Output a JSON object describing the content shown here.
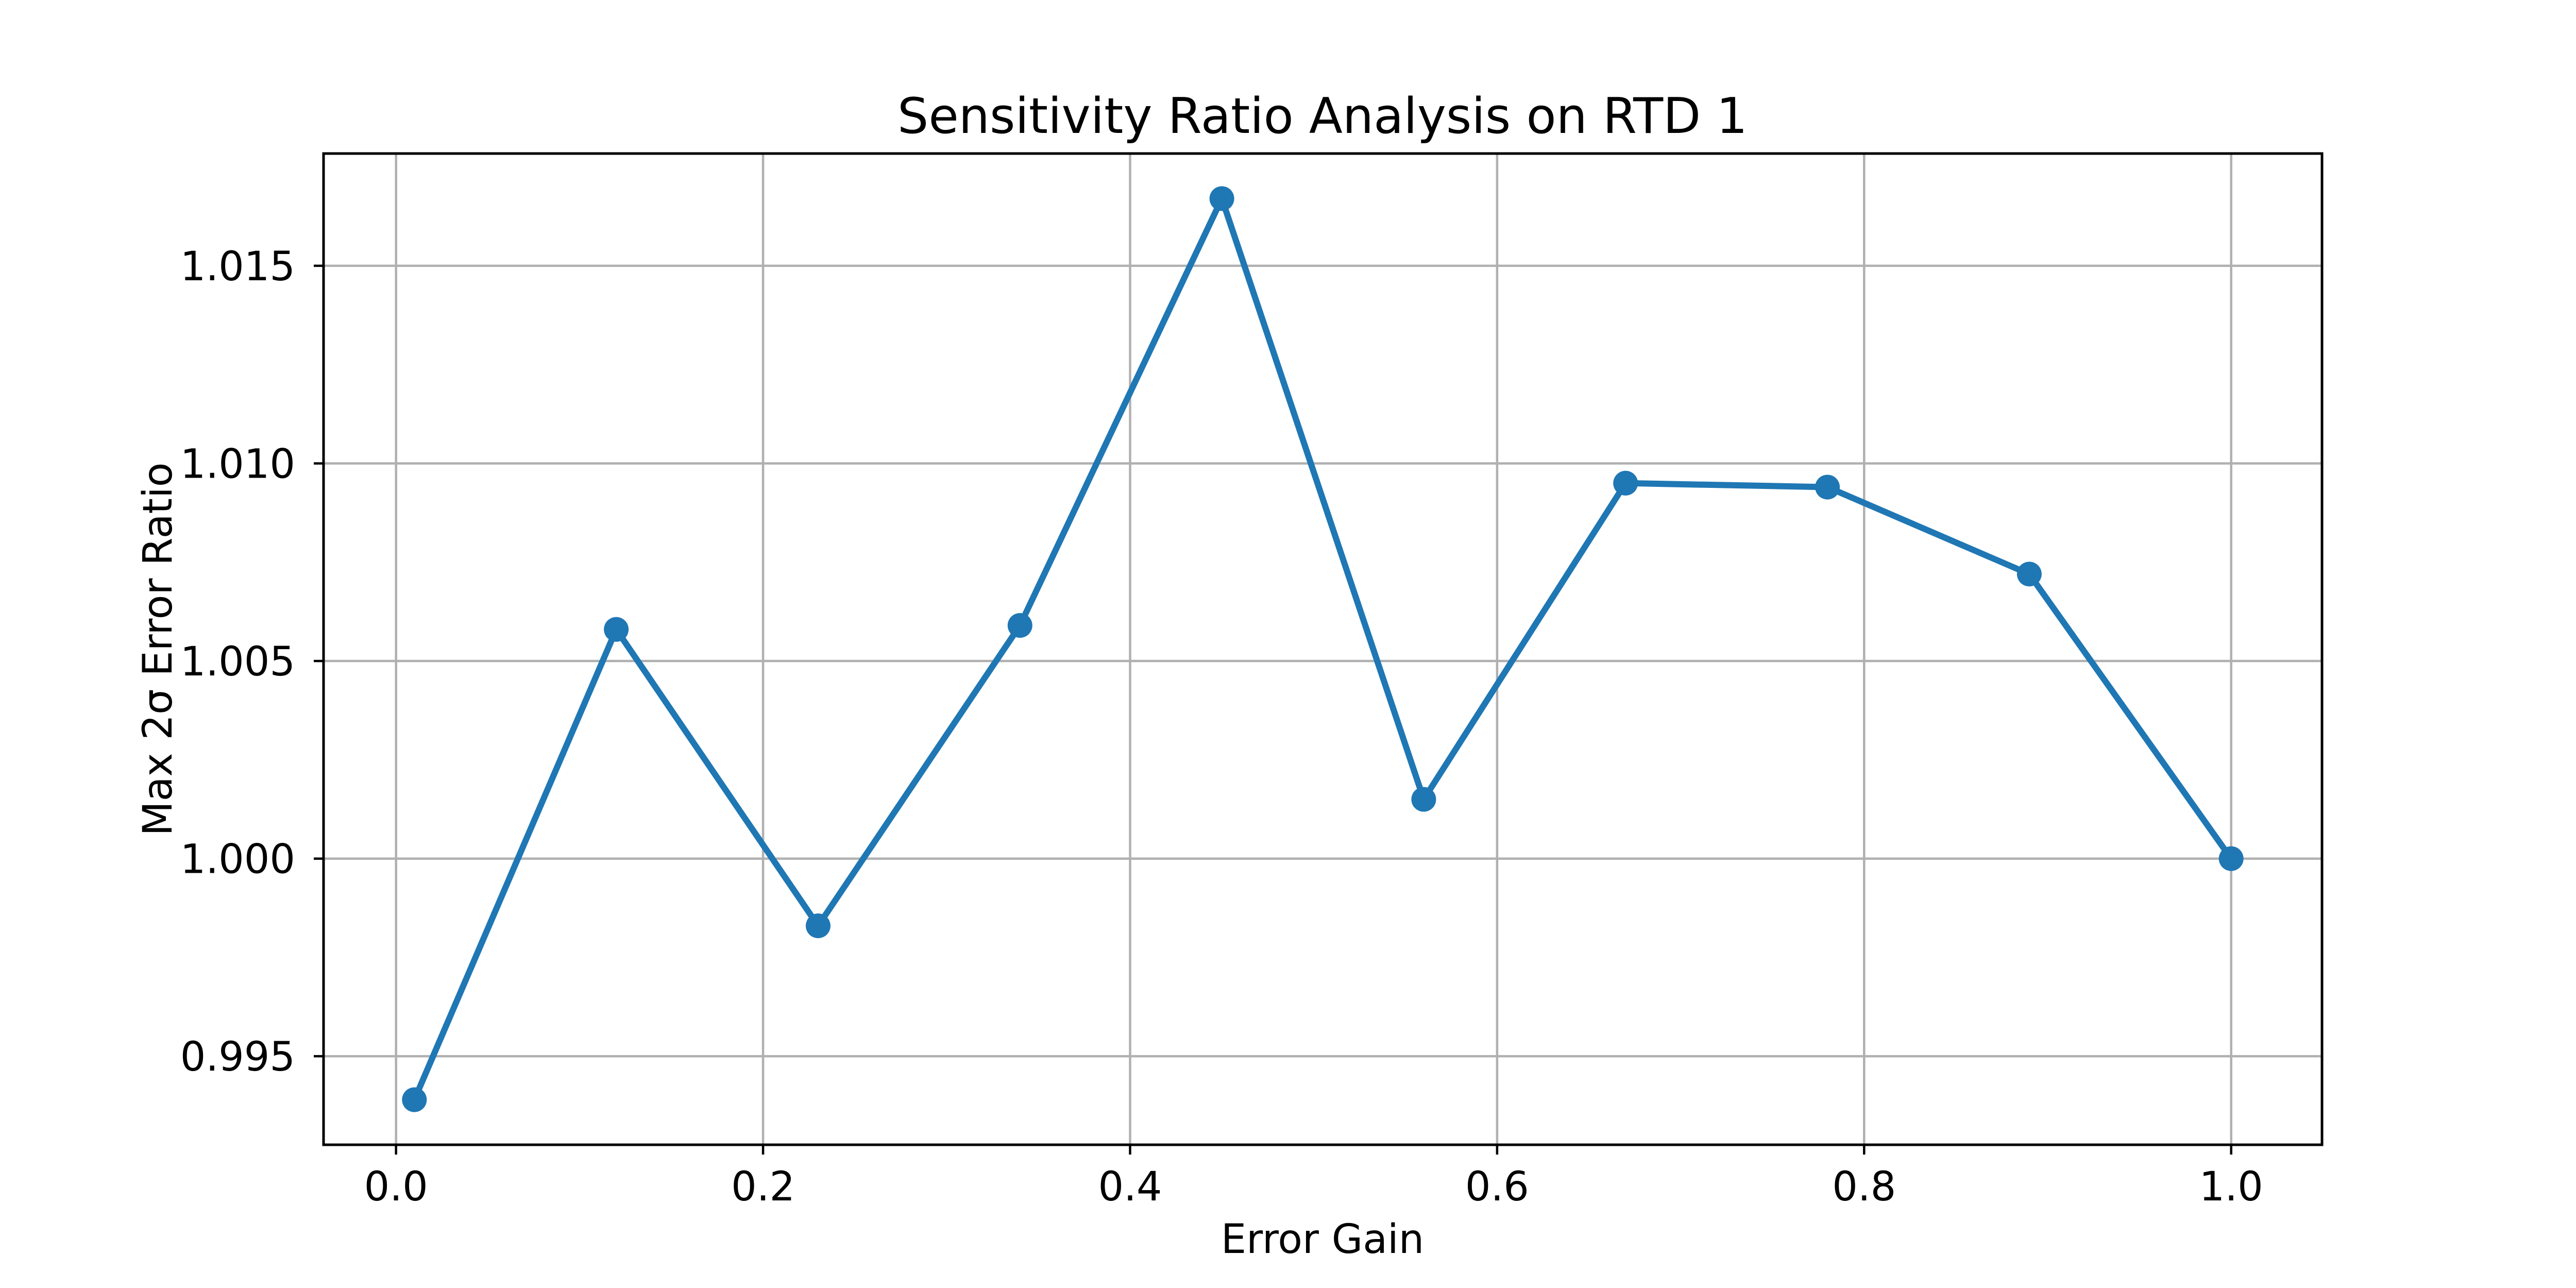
{
  "figure": {
    "background": "#ffffff"
  },
  "chart_data": {
    "type": "line",
    "title": "Sensitivity Ratio Analysis on RTD 1",
    "xlabel": "Error Gain",
    "ylabel": "Max 2σ Error Ratio",
    "x": [
      0.01,
      0.12,
      0.23,
      0.34,
      0.45,
      0.56,
      0.67,
      0.78,
      0.89,
      1.0
    ],
    "y": [
      0.9939,
      1.0058,
      0.9983,
      1.0059,
      1.0167,
      1.0015,
      1.0095,
      1.0094,
      1.0072,
      1.0
    ],
    "series_name": "Max 2σ error ratio vs error gain",
    "xlim": [
      -0.0395,
      1.0495
    ],
    "ylim": [
      0.99276,
      1.01784
    ],
    "xticks": [
      0.0,
      0.2,
      0.4,
      0.6,
      0.8,
      1.0
    ],
    "xtick_labels": [
      "0.0",
      "0.2",
      "0.4",
      "0.6",
      "0.8",
      "1.0"
    ],
    "yticks": [
      0.995,
      1.0,
      1.005,
      1.01,
      1.015
    ],
    "ytick_labels": [
      "0.995",
      "1.000",
      "1.005",
      "1.010",
      "1.015"
    ],
    "grid": true,
    "legend": "none",
    "marker": "circle",
    "line_color": "#1f77b4",
    "marker_color": "#1f77b4",
    "grid_color": "#b0b0b0",
    "spine_color": "#000000",
    "tick_color": "#000000",
    "text_color": "#000000"
  }
}
